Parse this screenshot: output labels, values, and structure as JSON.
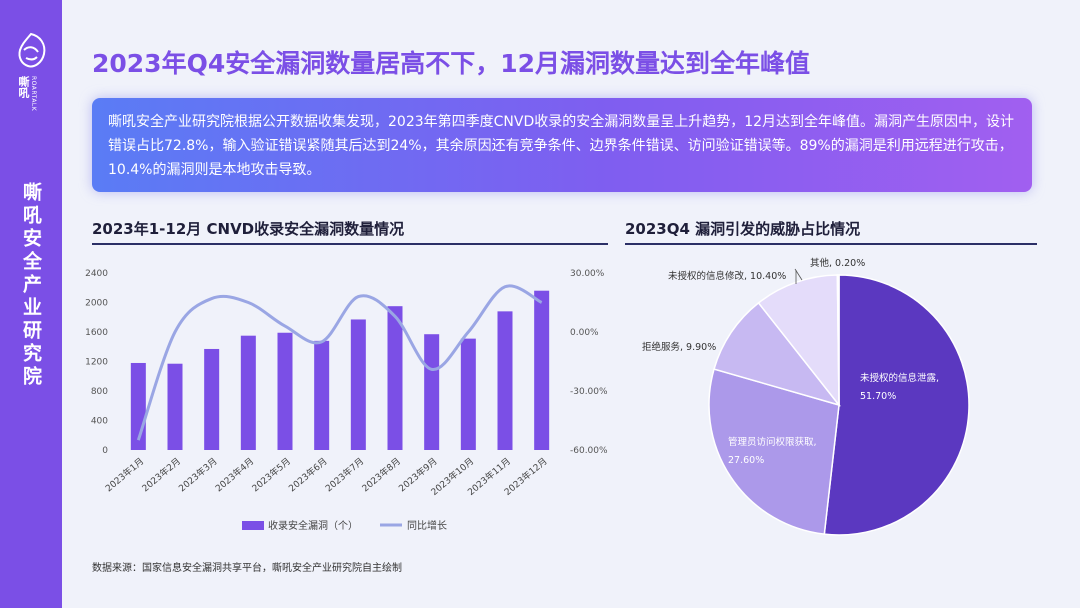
{
  "sidebar": {
    "logo_cn": "嘶吼",
    "logo_en": "ROARTALK",
    "title": "嘶吼安全产业研究院"
  },
  "page": {
    "title": "2023年Q4安全漏洞数量居高不下，12月漏洞数量达到全年峰值",
    "summary": "嘶吼安全产业研究院根据公开数据收集发现，2023年第四季度CNVD收录的安全漏洞数量呈上升趋势，12月达到全年峰值。漏洞产生原因中，设计错误占比72.8%，输入验证错误紧随其后达到24%，其余原因还有竞争条件、边界条件错误、访问验证错误等。89%的漏洞是利用远程进行攻击，10.4%的漏洞则是本地攻击导致。",
    "source": "数据来源：国家信息安全漏洞共享平台，嘶吼安全产业研究院自主绘制"
  },
  "colors": {
    "accent": "#7b4fe6",
    "bar": "#7b4fe6",
    "line": "#9aa6e4",
    "pie": [
      "#5b38c0",
      "#ac99ea",
      "#c7b9f2",
      "#e4dcfa",
      "#f2eefd"
    ]
  },
  "chart_data": [
    {
      "type": "bar",
      "title": "2023年1-12月 CNVD收录安全漏洞数量情况",
      "categories": [
        "2023年1月",
        "2023年2月",
        "2023年3月",
        "2023年4月",
        "2023年5月",
        "2023年6月",
        "2023年7月",
        "2023年8月",
        "2023年9月",
        "2023年10月",
        "2023年11月",
        "2023年12月"
      ],
      "series": [
        {
          "name": "收录安全漏洞（个）",
          "type": "bar",
          "axis": "left",
          "values": [
            1180,
            1170,
            1370,
            1550,
            1590,
            1480,
            1770,
            1950,
            1570,
            1510,
            1880,
            2160
          ]
        },
        {
          "name": "同比增长",
          "type": "line",
          "axis": "right",
          "values": [
            -55,
            0,
            17,
            15,
            3,
            -5,
            18,
            8,
            -19,
            0,
            23,
            15
          ]
        }
      ],
      "ylim": [
        0,
        2400
      ],
      "yticks": [
        "0",
        "400",
        "800",
        "1200",
        "1600",
        "2000",
        "2400"
      ],
      "y2lim": [
        -60,
        30
      ],
      "y2ticks": [
        "-60.00%",
        "-30.00%",
        "0.00%",
        "30.00%"
      ],
      "legend": "bottom"
    },
    {
      "type": "pie",
      "title": "2023Q4 漏洞引发的威胁占比情况",
      "slices": [
        {
          "label": "未授权的信息泄露,",
          "value_label": "51.70%",
          "value": 51.7
        },
        {
          "label": "管理员访问权限获取,",
          "value_label": "27.60%",
          "value": 27.6
        },
        {
          "label": "拒绝服务, 9.90%",
          "value": 9.9
        },
        {
          "label": "未授权的信息修改, 10.40%",
          "value": 10.4
        },
        {
          "label": "其他, 0.20%",
          "value": 0.2
        }
      ]
    }
  ]
}
